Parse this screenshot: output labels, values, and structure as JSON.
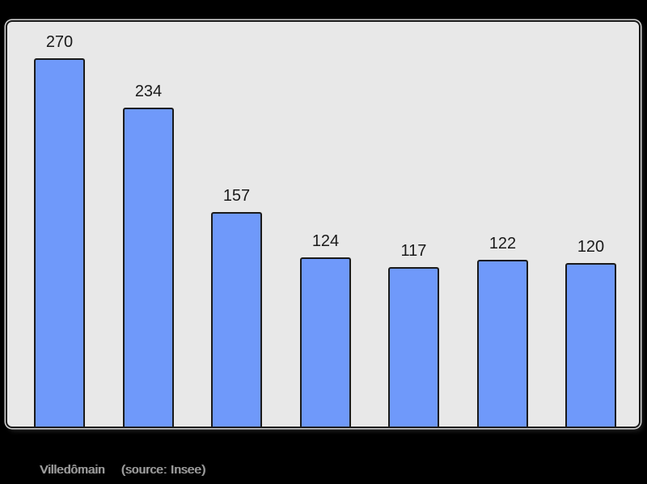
{
  "chart_data": {
    "type": "bar",
    "title": "",
    "xlabel": "",
    "ylabel": "",
    "categories": [
      "",
      "",
      "",
      "",
      "",
      "",
      ""
    ],
    "values": [
      270,
      234,
      157,
      124,
      117,
      122,
      120
    ],
    "value_labels": [
      "270",
      "234",
      "157",
      "124",
      "117",
      "122",
      "120"
    ],
    "ylim": [
      0,
      296
    ],
    "grid": false,
    "legend": false,
    "data_labels_position": "above-bars",
    "bar_color": "#6f99fa",
    "bar_border_color": "#1a1a1a",
    "value_label_color": "#1a1a1a",
    "panel_background": "#e8e8e8",
    "panel_border_color": "#1a1a1a",
    "outer_background": "#000000"
  },
  "caption": {
    "commune": "Villedômain",
    "source": "(source: Insee)",
    "color": "#999999"
  }
}
